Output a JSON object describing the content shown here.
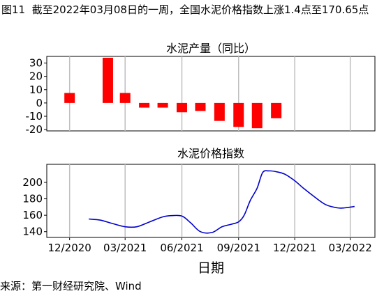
{
  "figure": {
    "title": "图11  截至2022年03月08日的一周，全国水泥价格指数上涨1.4点至170.65点",
    "source": "来源：第一财经研究院、Wind",
    "xlabel": "日期"
  },
  "colors": {
    "bar": "#ff0000",
    "line": "#0000cc",
    "grid": "#bfbfbf",
    "axis": "#000000"
  },
  "chart_data": [
    {
      "type": "bar",
      "title": "水泥产量（同比）",
      "categories": [
        "2020-12",
        "2021-02",
        "2021-03",
        "2021-04",
        "2021-05",
        "2021-06",
        "2021-07",
        "2021-08",
        "2021-09",
        "2021-10",
        "2021-11"
      ],
      "values": [
        7.5,
        34,
        7.5,
        -3.5,
        -3.5,
        -7,
        -6,
        -13.5,
        -18,
        -19,
        -11.5
      ],
      "ylim": [
        -21,
        35
      ],
      "yticks": [
        -20,
        -10,
        0,
        10,
        20,
        30
      ],
      "grid": "vertical"
    },
    {
      "type": "line",
      "title": "水泥价格指数",
      "ylim": [
        133,
        222
      ],
      "yticks": [
        140,
        160,
        180,
        200
      ],
      "grid": "vertical",
      "x": [
        "2021-01-01",
        "2021-01-20",
        "2021-02-08",
        "2021-03-01",
        "2021-03-20",
        "2021-04-10",
        "2021-05-01",
        "2021-05-15",
        "2021-06-01",
        "2021-06-15",
        "2021-07-01",
        "2021-07-20",
        "2021-08-05",
        "2021-08-20",
        "2021-09-01",
        "2021-09-10",
        "2021-09-20",
        "2021-10-01",
        "2021-10-10",
        "2021-10-20",
        "2021-11-01",
        "2021-11-15",
        "2021-12-01",
        "2021-12-15",
        "2022-01-01",
        "2022-01-20",
        "2022-02-08",
        "2022-02-20",
        "2022-03-08"
      ],
      "y": [
        155.5,
        154,
        150,
        146,
        146,
        152,
        158,
        159.5,
        159,
        151,
        140,
        139,
        146,
        149,
        152,
        160,
        178,
        193,
        212,
        214,
        213,
        210,
        202,
        193,
        183,
        173,
        169,
        169,
        170.65
      ]
    }
  ],
  "x_axis": {
    "ticks": [
      {
        "date": "2020-12-01",
        "label": "12/2020"
      },
      {
        "date": "2021-03-01",
        "label": "03/2021"
      },
      {
        "date": "2021-06-01",
        "label": "06/2021"
      },
      {
        "date": "2021-09-01",
        "label": "09/2021"
      },
      {
        "date": "2021-12-01",
        "label": "12/2021"
      },
      {
        "date": "2022-03-01",
        "label": "03/2022"
      }
    ],
    "range": [
      "2020-10-25",
      "2022-04-10"
    ]
  }
}
